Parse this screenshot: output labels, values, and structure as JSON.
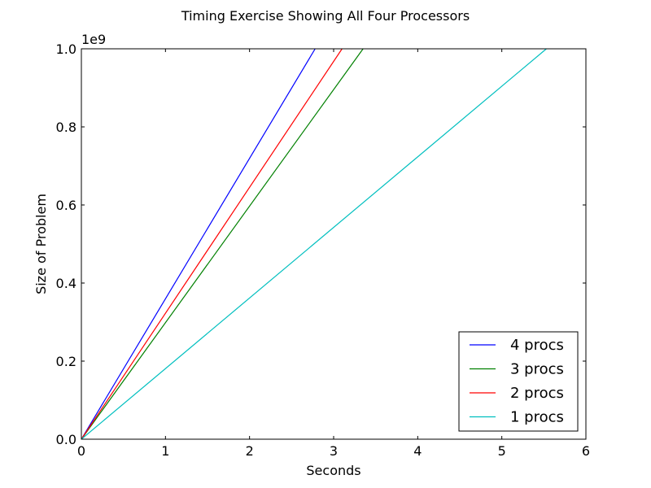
{
  "chart_data": {
    "type": "line",
    "title": "Timing Exercise Showing All Four Processors",
    "xlabel": "Seconds",
    "ylabel": "Size of Problem",
    "xlim": [
      0,
      6
    ],
    "ylim": [
      0,
      1000000000
    ],
    "y_offset_label": "1e9",
    "x_ticks": [
      0,
      1,
      2,
      3,
      4,
      5,
      6
    ],
    "x_tick_labels": [
      "0",
      "1",
      "2",
      "3",
      "4",
      "5",
      "6"
    ],
    "y_ticks": [
      0,
      200000000,
      400000000,
      600000000,
      800000000,
      1000000000
    ],
    "y_tick_labels": [
      "0.0",
      "0.2",
      "0.4",
      "0.6",
      "0.8",
      "1.0"
    ],
    "grid": false,
    "legend_position": "bottom-right",
    "series": [
      {
        "name": "4 procs",
        "color": "#0000ff",
        "x": [
          0,
          2.78
        ],
        "y": [
          0,
          1000000000
        ]
      },
      {
        "name": "3 procs",
        "color": "#008000",
        "x": [
          0,
          3.35
        ],
        "y": [
          0,
          1000000000
        ]
      },
      {
        "name": "2 procs",
        "color": "#ff0000",
        "x": [
          0,
          3.1
        ],
        "y": [
          0,
          1000000000
        ]
      },
      {
        "name": "1 procs",
        "color": "#00bfbf",
        "x": [
          0,
          5.53
        ],
        "y": [
          0,
          1000000000
        ]
      }
    ]
  }
}
